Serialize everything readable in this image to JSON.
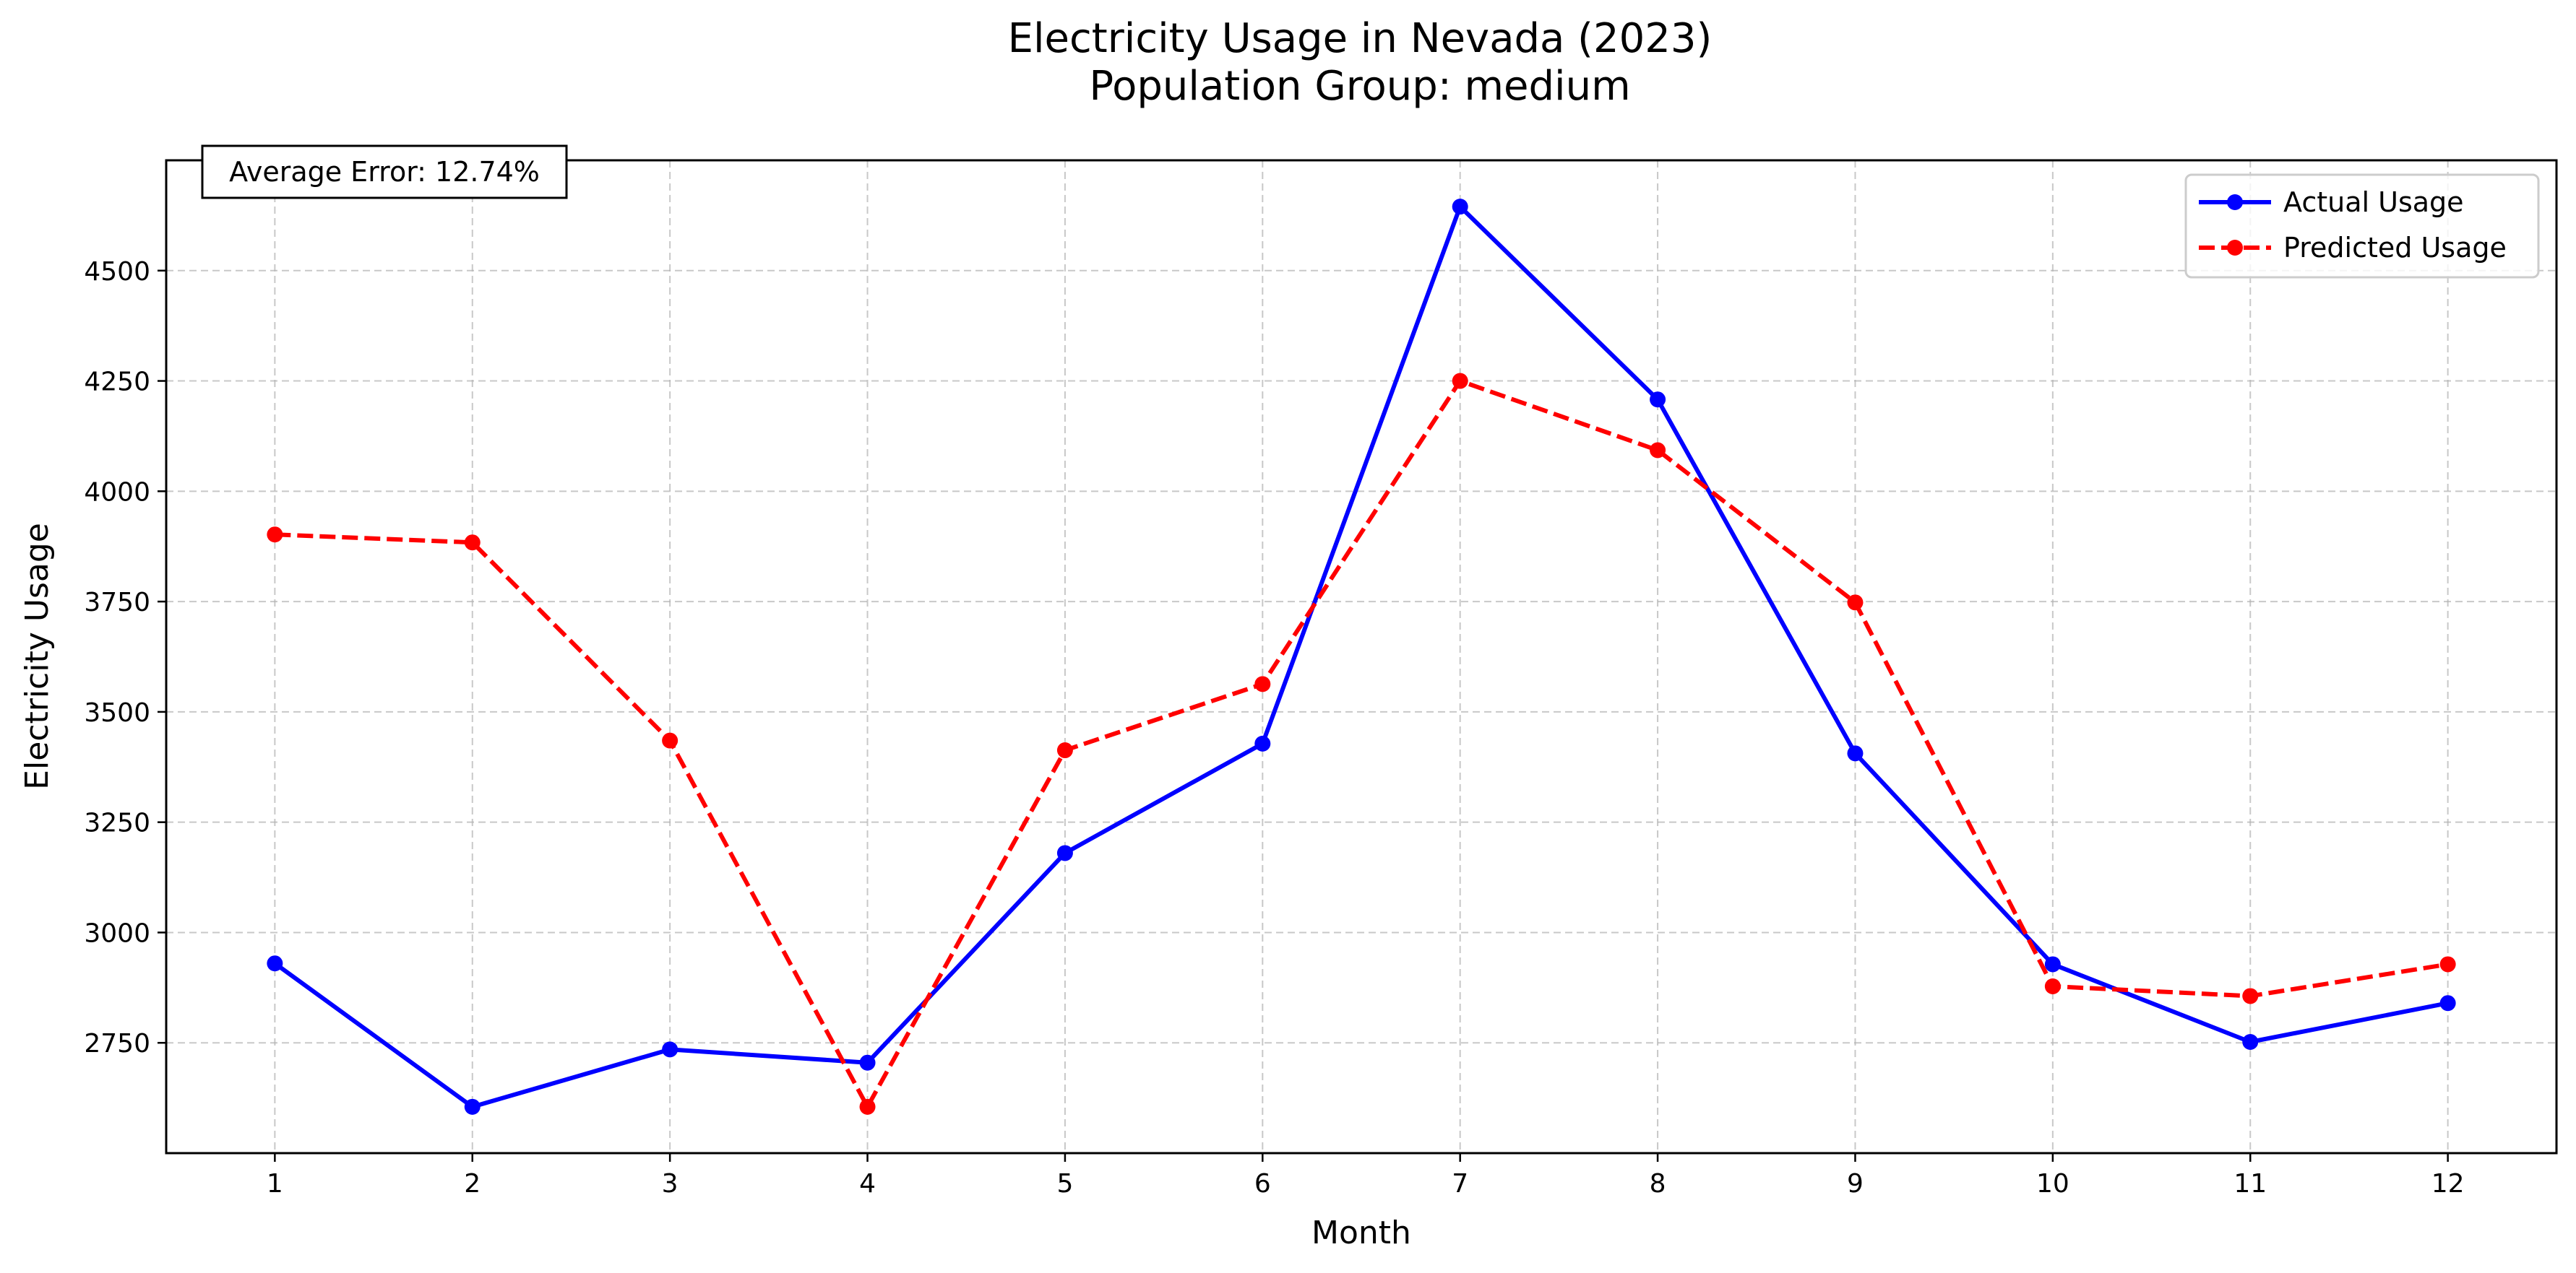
{
  "chart_data": {
    "type": "line",
    "title": "Electricity Usage in Nevada (2023)",
    "subtitle": "Population Group: medium",
    "xlabel": "Month",
    "ylabel": "Electricity Usage",
    "x": [
      1,
      2,
      3,
      4,
      5,
      6,
      7,
      8,
      9,
      10,
      11,
      12
    ],
    "x_ticks": [
      "1",
      "2",
      "3",
      "4",
      "5",
      "6",
      "7",
      "8",
      "9",
      "10",
      "11",
      "12"
    ],
    "xlim": [
      0.45,
      12.55
    ],
    "ylim": [
      2500,
      4750
    ],
    "y_ticks": [
      2750,
      3000,
      3250,
      3500,
      3750,
      4000,
      4250,
      4500
    ],
    "grid": true,
    "legend_position": "top-right",
    "annotation": "Average Error: 12.74%",
    "series": [
      {
        "name": "Actual Usage",
        "color": "#0000ff",
        "style": "solid",
        "values": [
          2930,
          2605,
          2735,
          2705,
          3180,
          3428,
          4645,
          4208,
          3406,
          2928,
          2752,
          2840
        ]
      },
      {
        "name": "Predicted Usage",
        "color": "#ff0000",
        "style": "dashed",
        "values": [
          3902,
          3884,
          3435,
          2605,
          3413,
          3563,
          4250,
          4093,
          3748,
          2878,
          2856,
          2928
        ]
      }
    ]
  }
}
